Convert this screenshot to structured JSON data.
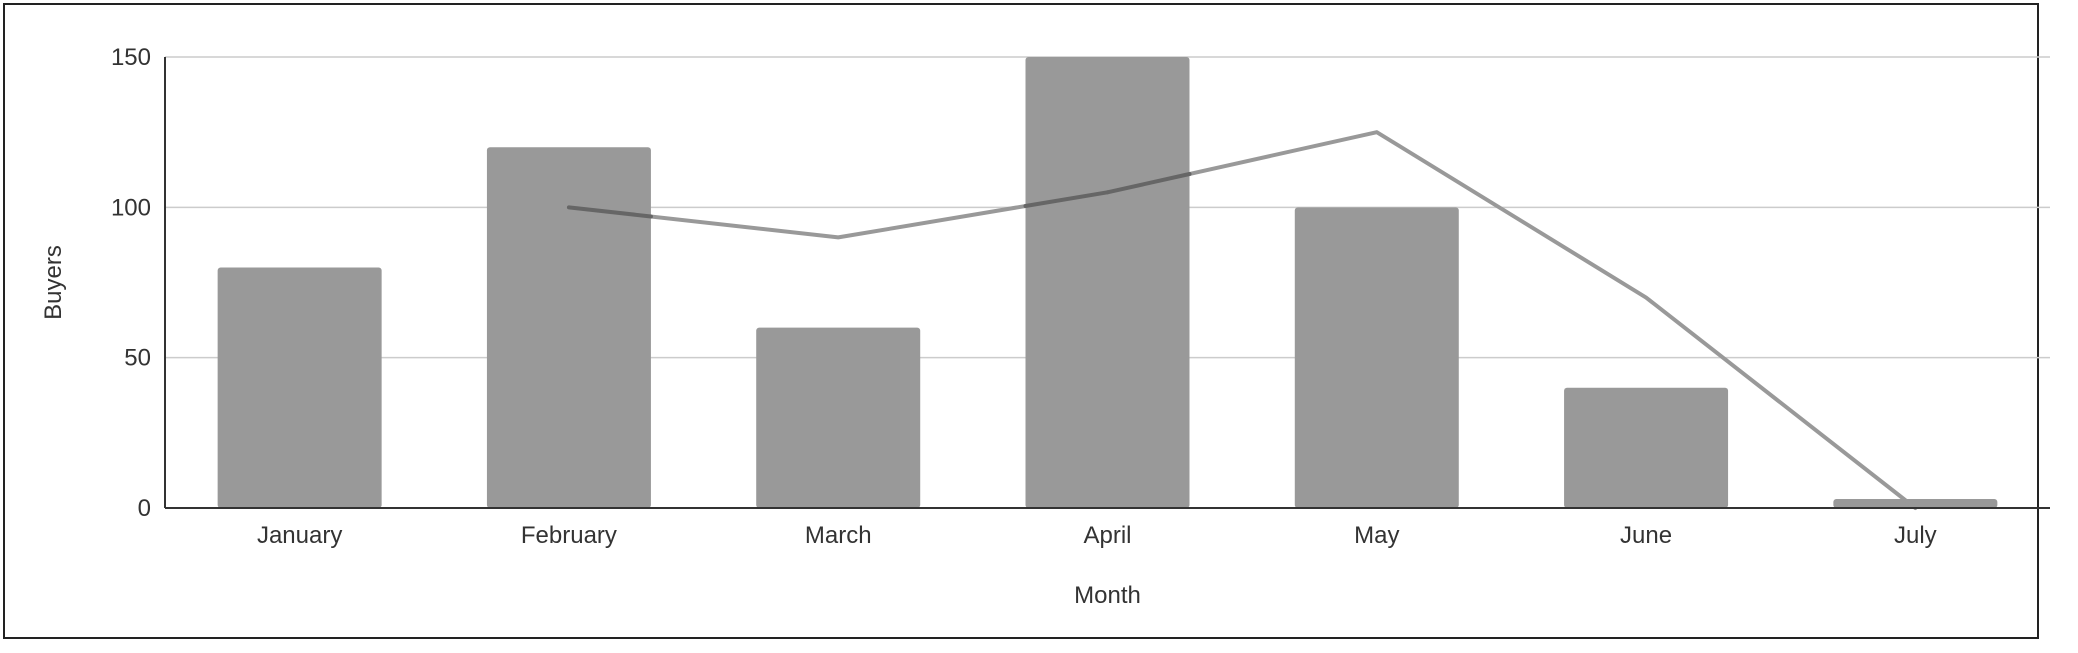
{
  "chart_data": {
    "type": "bar",
    "title": "",
    "xlabel": "Month",
    "ylabel": "Buyers",
    "categories": [
      "January",
      "February",
      "March",
      "April",
      "May",
      "June",
      "July"
    ],
    "ylim": [
      0,
      150
    ],
    "yticks": [
      0,
      50,
      100,
      150
    ],
    "grid": true,
    "legend": "none",
    "series": [
      {
        "type": "bar",
        "values": [
          80,
          120,
          60,
          150,
          100,
          40,
          3
        ],
        "color": "#999999"
      },
      {
        "type": "line",
        "points": [
          {
            "x": "February",
            "y": 100
          },
          {
            "x": "March",
            "y": 90
          },
          {
            "x": "April",
            "y": 105
          },
          {
            "x": "May",
            "y": 125
          },
          {
            "x": "June",
            "y": 70
          },
          {
            "x": "July",
            "y": 0
          }
        ],
        "color": "#999999"
      }
    ]
  }
}
